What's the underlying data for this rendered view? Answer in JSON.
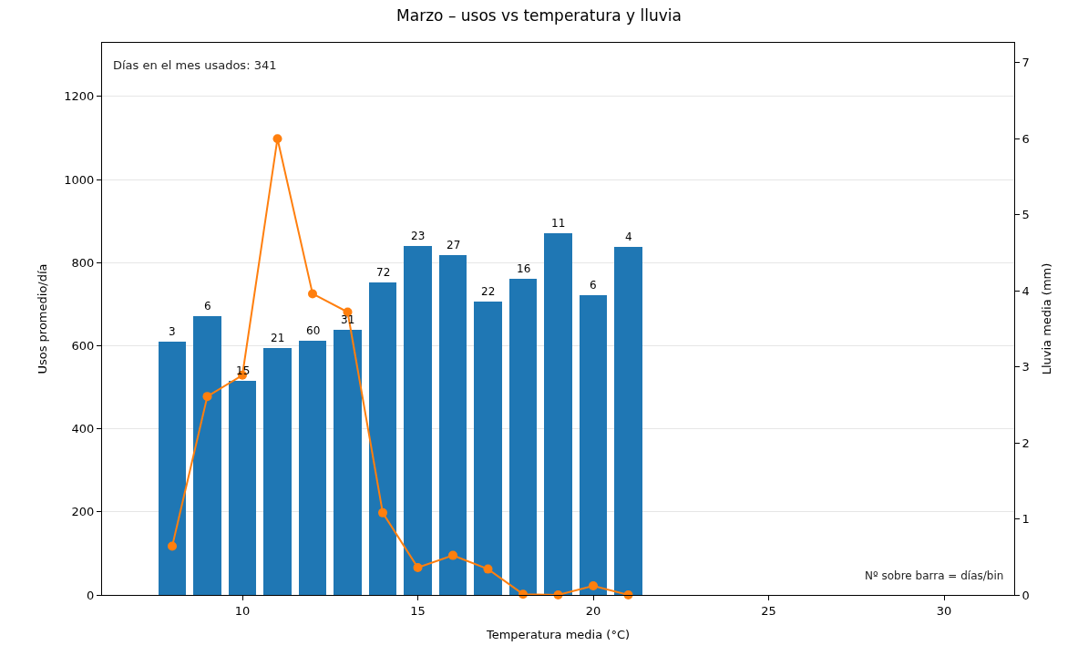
{
  "chart_data": {
    "type": "bar",
    "title": "Marzo – usos vs temperatura y lluvia",
    "xlabel": "Temperatura media (°C)",
    "ylabel": "Usos promedio/día",
    "y2label": "Lluvia media (mm)",
    "x": [
      8,
      9,
      10,
      11,
      12,
      13,
      14,
      15,
      16,
      17,
      18,
      19,
      20,
      21
    ],
    "series": [
      {
        "color": "#1f77b4",
        "values": [
          610,
          671,
          516,
          595,
          612,
          638,
          752,
          840,
          818,
          706,
          761,
          871,
          722,
          838
        ]
      },
      {
        "type": "line",
        "axis": "y2",
        "color": "#ff7f0e",
        "marker": "circle",
        "line_style": "solid",
        "values": [
          0.64,
          2.61,
          2.89,
          6.0,
          3.96,
          3.72,
          1.08,
          0.36,
          0.52,
          0.34,
          0.01,
          0.0,
          0.12,
          0.0
        ]
      }
    ],
    "xlim": [
      6.0,
      32.0
    ],
    "xticks": [
      10,
      15,
      20,
      25,
      30
    ],
    "ylim": [
      0,
      1329
    ],
    "yticks": [
      0,
      200,
      400,
      600,
      800,
      1000,
      1200
    ],
    "y2lim": [
      0,
      7.26
    ],
    "y2ticks": [
      0,
      1,
      2,
      3,
      4,
      5,
      6,
      7
    ],
    "grid": "y",
    "annotations": [
      "Días en el mes usados: 341",
      "Nº sobre barra = días/bin",
      {
        "text": "3",
        "x": 8,
        "y": 610
      },
      {
        "text": "6",
        "x": 9,
        "y": 671
      },
      {
        "text": "15",
        "x": 10,
        "y": 516
      },
      {
        "text": "21",
        "x": 11,
        "y": 595
      },
      {
        "text": "60",
        "x": 12,
        "y": 612
      },
      {
        "text": "31",
        "x": 13,
        "y": 638
      },
      {
        "text": "72",
        "x": 14,
        "y": 752
      },
      {
        "text": "23",
        "x": 15,
        "y": 840
      },
      {
        "text": "27",
        "x": 16,
        "y": 818
      },
      {
        "text": "22",
        "x": 17,
        "y": 706
      },
      {
        "text": "16",
        "x": 18,
        "y": 761
      },
      {
        "text": "11",
        "x": 19,
        "y": 871
      },
      {
        "text": "6",
        "x": 20,
        "y": 722
      },
      {
        "text": "4",
        "x": 21,
        "y": 838
      }
    ]
  }
}
